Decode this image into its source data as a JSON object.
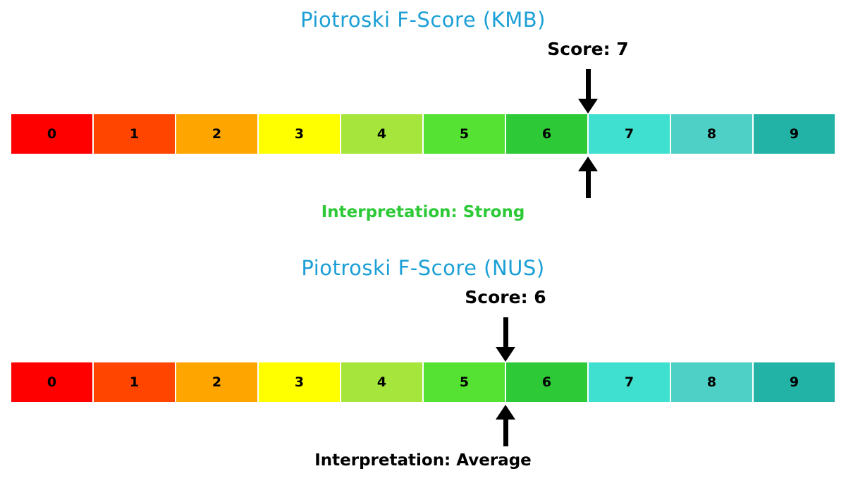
{
  "background": "#ffffff",
  "chart_data": [
    {
      "type": "bar",
      "variant": "horizontal-score-gauge",
      "title": "Piotroski F-Score (KMB)",
      "title_color": "#1b9fd6",
      "score": 7,
      "score_label": "Score: 7",
      "interpretation": "Strong",
      "interpretation_label": "Interpretation: Strong",
      "interpretation_color": "#2dc937",
      "categories": [
        "0",
        "1",
        "2",
        "3",
        "4",
        "5",
        "6",
        "7",
        "8",
        "9"
      ],
      "segment_colors": [
        "#ff0000",
        "#ff4500",
        "#ffa500",
        "#ffff00",
        "#a6e53c",
        "#55e233",
        "#2dc937",
        "#40e0d0",
        "#4fd0c7",
        "#23b3a6"
      ],
      "xlim": [
        0,
        10
      ],
      "arrow_color": "#000000",
      "number_color": "#000000"
    },
    {
      "type": "bar",
      "variant": "horizontal-score-gauge",
      "title": "Piotroski F-Score (NUS)",
      "title_color": "#1b9fd6",
      "score": 6,
      "score_label": "Score: 6",
      "interpretation": "Average",
      "interpretation_label": "Interpretation: Average",
      "interpretation_color": "#000000",
      "categories": [
        "0",
        "1",
        "2",
        "3",
        "4",
        "5",
        "6",
        "7",
        "8",
        "9"
      ],
      "segment_colors": [
        "#ff0000",
        "#ff4500",
        "#ffa500",
        "#ffff00",
        "#a6e53c",
        "#55e233",
        "#2dc937",
        "#40e0d0",
        "#4fd0c7",
        "#23b3a6"
      ],
      "xlim": [
        0,
        10
      ],
      "arrow_color": "#000000",
      "number_color": "#000000"
    }
  ]
}
